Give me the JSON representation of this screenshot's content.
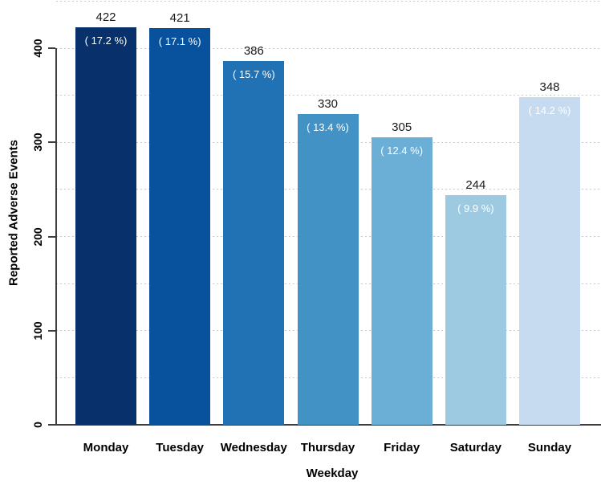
{
  "chart_data": {
    "type": "bar",
    "title": "",
    "xlabel": "Weekday",
    "ylabel": "Reported Adverse Events",
    "categories": [
      "Monday",
      "Tuesday",
      "Wednesday",
      "Thursday",
      "Friday",
      "Saturday",
      "Sunday"
    ],
    "values": [
      422,
      421,
      386,
      330,
      305,
      244,
      348
    ],
    "value_labels": [
      "422",
      "421",
      "386",
      "330",
      "305",
      "244",
      "348"
    ],
    "percent_labels": [
      "( 17.2 %)",
      "( 17.1 %)",
      "( 15.7 %)",
      "( 13.4 %)",
      "( 12.4 %)",
      "( 9.9 %)",
      "( 14.2 %)"
    ],
    "bar_colors": [
      "#08306B",
      "#08519C",
      "#2171B5",
      "#4292C6",
      "#6BAED6",
      "#9ECAE1",
      "#C6DBEF"
    ],
    "ylim": [
      0,
      450
    ],
    "yticks": [
      0,
      100,
      200,
      300,
      400
    ],
    "gridline_values": [
      50,
      100,
      150,
      200,
      250,
      300,
      350,
      400,
      450
    ],
    "grid": "horizontal-dotted",
    "legend": "none",
    "axis_color": "#3d3d3d",
    "grid_color": "#c9c9c9",
    "value_label_color": "#1a1a1a",
    "percent_label_color": "#ffffff"
  }
}
